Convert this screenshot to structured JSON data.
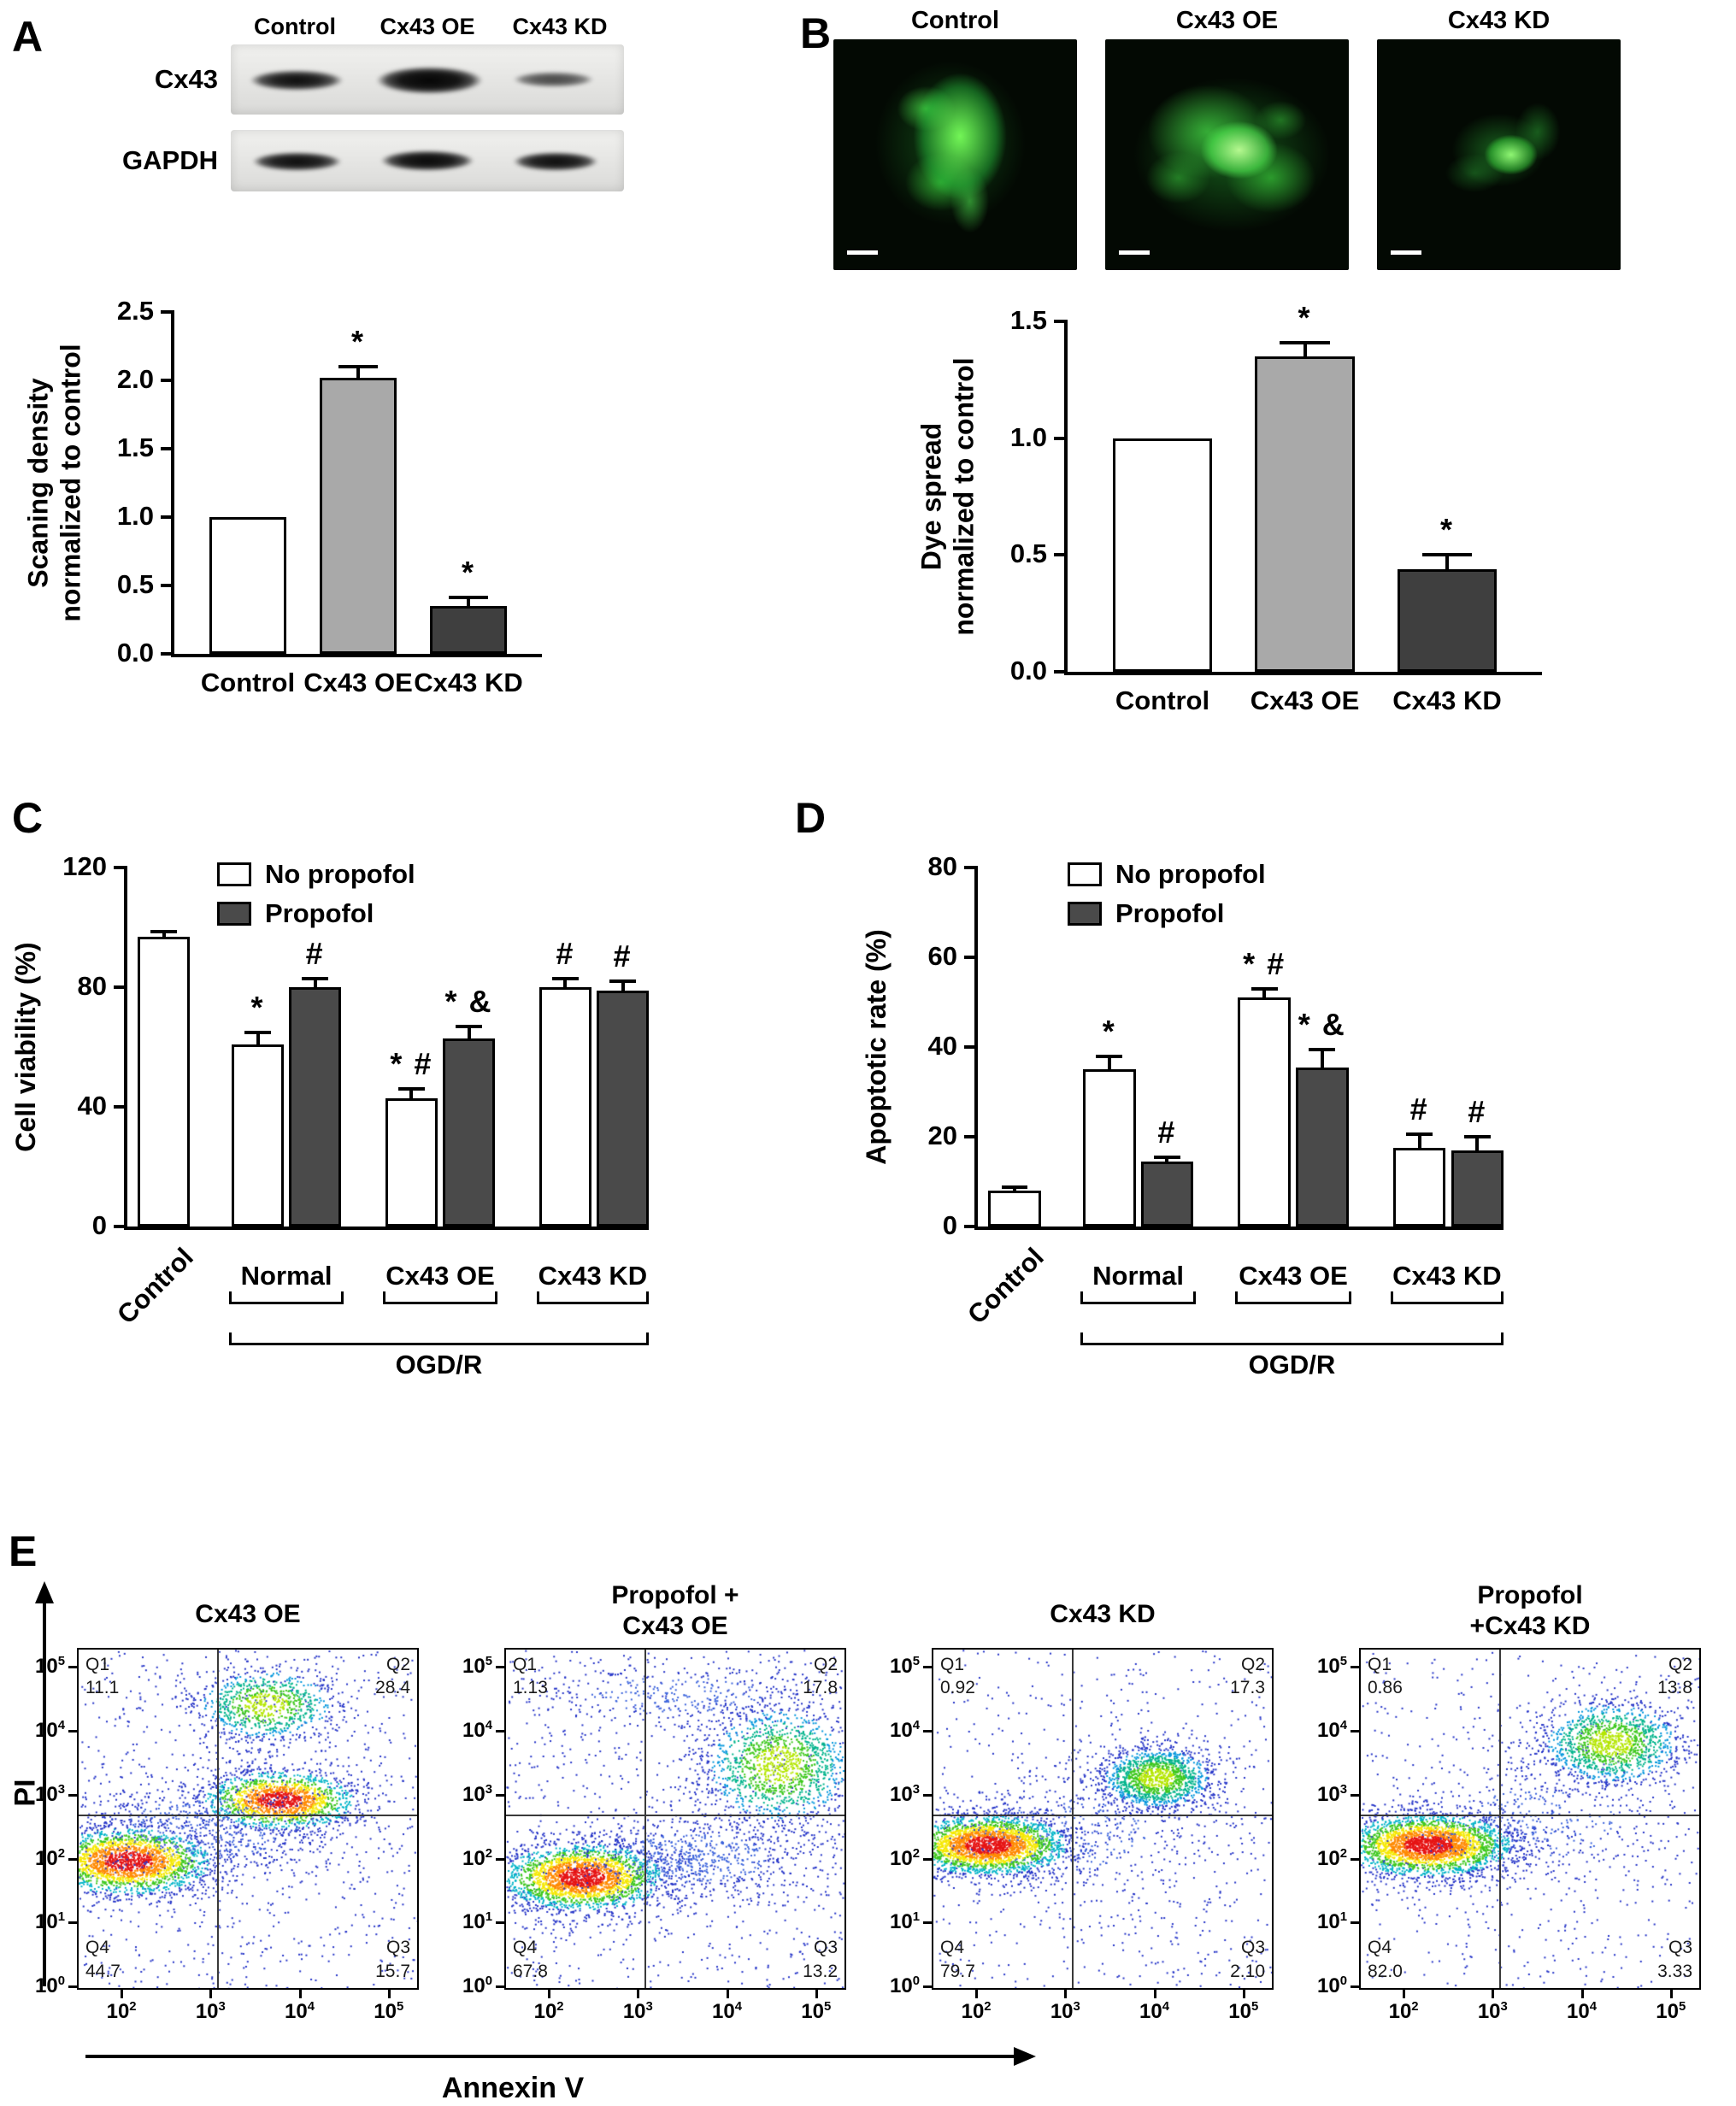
{
  "figure": {
    "panels": {
      "a": {
        "label": "A",
        "blot": {
          "lane_labels": [
            "Control",
            "Cx43 OE",
            "Cx43 KD"
          ],
          "row_labels": [
            "Cx43",
            "GAPDH"
          ]
        }
      },
      "b": {
        "label": "B",
        "image_titles": [
          "Control",
          "Cx43 OE",
          "Cx43 KD"
        ]
      },
      "c": {
        "label": "C"
      },
      "d": {
        "label": "D"
      },
      "e": {
        "label": "E"
      }
    }
  },
  "chart_data": [
    {
      "id": "panel_a_bar",
      "type": "bar",
      "ylabel": "Scaning density\nnormalized to control",
      "ylim": [
        0,
        2.5
      ],
      "ylabel_offset": -140,
      "yticks": [
        {
          "v": 0,
          "l": "0.0"
        },
        {
          "v": 0.5,
          "l": "0.5"
        },
        {
          "v": 1,
          "l": "1.0"
        },
        {
          "v": 1.5,
          "l": "1.5"
        },
        {
          "v": 2,
          "l": "2.0"
        },
        {
          "v": 2.5,
          "l": "2.5"
        }
      ],
      "categories": [
        "Control",
        "Cx43 OE",
        "Cx43 KD"
      ],
      "values": [
        1.0,
        2.02,
        0.35
      ],
      "errors": [
        0,
        0.08,
        0.06
      ],
      "annotations": [
        "",
        "*",
        "*"
      ],
      "colors": [
        "#ffffff",
        "#a9a9a9",
        "#3f3f3f"
      ],
      "centers": [
        0.2,
        0.5,
        0.8
      ],
      "bar_w": 0.21
    },
    {
      "id": "panel_b_bar",
      "type": "bar",
      "ylabel": "Dye spread\nnormalized to control",
      "ylim": [
        0,
        1.5
      ],
      "ylabel_offset": -140,
      "yticks": [
        {
          "v": 0,
          "l": "0.0"
        },
        {
          "v": 0.5,
          "l": "0.5"
        },
        {
          "v": 1,
          "l": "1.0"
        },
        {
          "v": 1.5,
          "l": "1.5"
        }
      ],
      "categories": [
        "Control",
        "Cx43 OE",
        "Cx43 KD"
      ],
      "values": [
        1.0,
        1.35,
        0.44
      ],
      "errors": [
        0,
        0.06,
        0.06
      ],
      "annotations": [
        "",
        "*",
        "*"
      ],
      "colors": [
        "#ffffff",
        "#a9a9a9",
        "#3f3f3f"
      ],
      "centers": [
        0.2,
        0.5,
        0.8
      ],
      "bar_w": 0.21
    },
    {
      "id": "panel_c_bar",
      "type": "grouped-bar",
      "ylabel": "Cell viability (%)",
      "ylim": [
        0,
        120
      ],
      "ylabel_offset": -118,
      "yticks": [
        {
          "v": 0,
          "l": "0"
        },
        {
          "v": 40,
          "l": "40"
        },
        {
          "v": 80,
          "l": "80"
        },
        {
          "v": 120,
          "l": "120"
        }
      ],
      "legend": [
        {
          "label": "No propofol",
          "color": "#ffffff"
        },
        {
          "label": "Propofol",
          "color": "#4a4a4a"
        }
      ],
      "rotated_category": "Control",
      "bars": [
        {
          "category": "Control",
          "value": 97,
          "err": 1.5,
          "color": "#ffffff",
          "ann": "",
          "center": 0.07
        },
        {
          "category": "Normal / no propofol",
          "value": 61,
          "err": 4,
          "color": "#ffffff",
          "ann": "*",
          "center": 0.25
        },
        {
          "category": "Normal / propofol",
          "value": 80,
          "err": 3,
          "color": "#4a4a4a",
          "ann": "#",
          "center": 0.36
        },
        {
          "category": "Cx43 OE / no propofol",
          "value": 43,
          "err": 3,
          "color": "#ffffff",
          "ann": "* #",
          "center": 0.545
        },
        {
          "category": "Cx43 OE / propofol",
          "value": 63,
          "err": 4,
          "color": "#4a4a4a",
          "ann": "* &",
          "center": 0.655
        },
        {
          "category": "Cx43 KD / no propofol",
          "value": 80,
          "err": 3,
          "color": "#ffffff",
          "ann": "#",
          "center": 0.84
        },
        {
          "category": "Cx43 KD / propofol",
          "value": 79,
          "err": 3,
          "color": "#4a4a4a",
          "ann": "#",
          "center": 0.95
        }
      ],
      "bar_w": 0.1,
      "groups": [
        {
          "label": "Normal",
          "from": 0.195,
          "to": 0.415
        },
        {
          "label": "Cx43 OE",
          "from": 0.49,
          "to": 0.71
        },
        {
          "label": "Cx43 KD",
          "from": 0.785,
          "to": 1.0
        }
      ],
      "bottom_bracket": {
        "label": "OGD/R",
        "from": 0.195,
        "to": 1.0
      }
    },
    {
      "id": "panel_d_bar",
      "type": "grouped-bar",
      "ylabel": "Apoptotic rate (%)",
      "ylim": [
        0,
        80
      ],
      "ylabel_offset": -118,
      "yticks": [
        {
          "v": 0,
          "l": "0"
        },
        {
          "v": 20,
          "l": "20"
        },
        {
          "v": 40,
          "l": "40"
        },
        {
          "v": 60,
          "l": "60"
        },
        {
          "v": 80,
          "l": "80"
        }
      ],
      "legend": [
        {
          "label": "No propofol",
          "color": "#ffffff"
        },
        {
          "label": "Propofol",
          "color": "#4a4a4a"
        }
      ],
      "rotated_category": "Control",
      "bars": [
        {
          "category": "Control",
          "value": 8,
          "err": 0.8,
          "color": "#ffffff",
          "ann": "",
          "center": 0.07
        },
        {
          "category": "Normal / no propofol",
          "value": 35,
          "err": 3,
          "color": "#ffffff",
          "ann": "*",
          "center": 0.25
        },
        {
          "category": "Normal / propofol",
          "value": 14.5,
          "err": 1,
          "color": "#4a4a4a",
          "ann": "#",
          "center": 0.36
        },
        {
          "category": "Cx43 OE / no propofol",
          "value": 51,
          "err": 2,
          "color": "#ffffff",
          "ann": "* #",
          "center": 0.545
        },
        {
          "category": "Cx43 OE / propofol",
          "value": 35.5,
          "err": 4,
          "color": "#4a4a4a",
          "ann": "* &",
          "center": 0.655
        },
        {
          "category": "Cx43 KD / no propofol",
          "value": 17.5,
          "err": 3,
          "color": "#ffffff",
          "ann": "#",
          "center": 0.84
        },
        {
          "category": "Cx43 KD / propofol",
          "value": 17,
          "err": 3,
          "color": "#4a4a4a",
          "ann": "#",
          "center": 0.95
        }
      ],
      "bar_w": 0.1,
      "groups": [
        {
          "label": "Normal",
          "from": 0.195,
          "to": 0.415
        },
        {
          "label": "Cx43 OE",
          "from": 0.49,
          "to": 0.71
        },
        {
          "label": "Cx43 KD",
          "from": 0.785,
          "to": 1.0
        }
      ],
      "bottom_bracket": {
        "label": "OGD/R",
        "from": 0.195,
        "to": 1.0
      }
    },
    {
      "id": "panel_e_flow",
      "type": "scatter",
      "xlabel": "Annexin V",
      "ylabel": "PI",
      "x_log_range": [
        1.5,
        5.3
      ],
      "y_log_range": [
        0,
        5.3
      ],
      "xticks": [
        2,
        3,
        4,
        5
      ],
      "yticks": [
        0,
        1,
        2,
        3,
        4,
        5
      ],
      "quadrant_x_log": 3.05,
      "quadrant_y_log": 2.72,
      "plots": [
        {
          "title": [
            "Cx43 OE"
          ],
          "quadrants": [
            {
              "name": "Q1",
              "value": "11.1",
              "pos": "tl"
            },
            {
              "name": "Q2",
              "value": "28.4",
              "pos": "tr"
            },
            {
              "name": "Q3",
              "value": "15.7",
              "pos": "br"
            },
            {
              "name": "Q4",
              "value": "44.7",
              "pos": "bl"
            }
          ],
          "clusters": [
            {
              "x": 2.05,
              "y": 2.0,
              "sx": 0.5,
              "sy": 0.28,
              "n": 2400,
              "heat": 2
            },
            {
              "x": 3.75,
              "y": 2.95,
              "sx": 0.45,
              "sy": 0.24,
              "n": 1700,
              "heat": 2
            },
            {
              "x": 3.6,
              "y": 4.45,
              "sx": 0.42,
              "sy": 0.3,
              "n": 900,
              "heat": 1
            },
            {
              "x": 2.9,
              "y": 2.5,
              "sx": 0.8,
              "sy": 0.45,
              "n": 600,
              "heat": 0
            }
          ],
          "noise": 800
        },
        {
          "title": [
            "Propofol +",
            "Cx43 OE"
          ],
          "quadrants": [
            {
              "name": "Q1",
              "value": "1.13",
              "pos": "tl"
            },
            {
              "name": "Q2",
              "value": "17.8",
              "pos": "tr"
            },
            {
              "name": "Q3",
              "value": "13.2",
              "pos": "br"
            },
            {
              "name": "Q4",
              "value": "67.8",
              "pos": "bl"
            }
          ],
          "clusters": [
            {
              "x": 2.35,
              "y": 1.75,
              "sx": 0.48,
              "sy": 0.28,
              "n": 2600,
              "heat": 2
            },
            {
              "x": 4.55,
              "y": 3.5,
              "sx": 0.45,
              "sy": 0.5,
              "n": 1500,
              "heat": 1
            },
            {
              "x": 3.6,
              "y": 2.05,
              "sx": 0.75,
              "sy": 0.35,
              "n": 700,
              "heat": 0
            },
            {
              "x": 3.4,
              "y": 4.6,
              "sx": 0.9,
              "sy": 0.25,
              "n": 300,
              "heat": 0
            }
          ],
          "noise": 800
        },
        {
          "title": [
            "Cx43 KD"
          ],
          "quadrants": [
            {
              "name": "Q1",
              "value": "0.92",
              "pos": "tl"
            },
            {
              "name": "Q2",
              "value": "17.3",
              "pos": "tr"
            },
            {
              "name": "Q3",
              "value": "2.10",
              "pos": "br"
            },
            {
              "name": "Q4",
              "value": "79.7",
              "pos": "bl"
            }
          ],
          "clusters": [
            {
              "x": 2.1,
              "y": 2.25,
              "sx": 0.48,
              "sy": 0.25,
              "n": 2900,
              "heat": 2
            },
            {
              "x": 4.0,
              "y": 3.3,
              "sx": 0.34,
              "sy": 0.26,
              "n": 1500,
              "heat": 1
            },
            {
              "x": 3.0,
              "y": 2.4,
              "sx": 0.9,
              "sy": 0.5,
              "n": 350,
              "heat": 0
            }
          ],
          "noise": 600
        },
        {
          "title": [
            "Propofol",
            "+Cx43 KD"
          ],
          "quadrants": [
            {
              "name": "Q1",
              "value": "0.86",
              "pos": "tl"
            },
            {
              "name": "Q2",
              "value": "13.8",
              "pos": "tr"
            },
            {
              "name": "Q3",
              "value": "3.33",
              "pos": "br"
            },
            {
              "name": "Q4",
              "value": "82.0",
              "pos": "bl"
            }
          ],
          "clusters": [
            {
              "x": 2.25,
              "y": 2.25,
              "sx": 0.5,
              "sy": 0.26,
              "n": 2900,
              "heat": 2
            },
            {
              "x": 4.3,
              "y": 3.85,
              "sx": 0.42,
              "sy": 0.35,
              "n": 1400,
              "heat": 1
            },
            {
              "x": 3.4,
              "y": 2.6,
              "sx": 0.9,
              "sy": 0.5,
              "n": 350,
              "heat": 0
            }
          ],
          "noise": 600
        }
      ]
    }
  ]
}
